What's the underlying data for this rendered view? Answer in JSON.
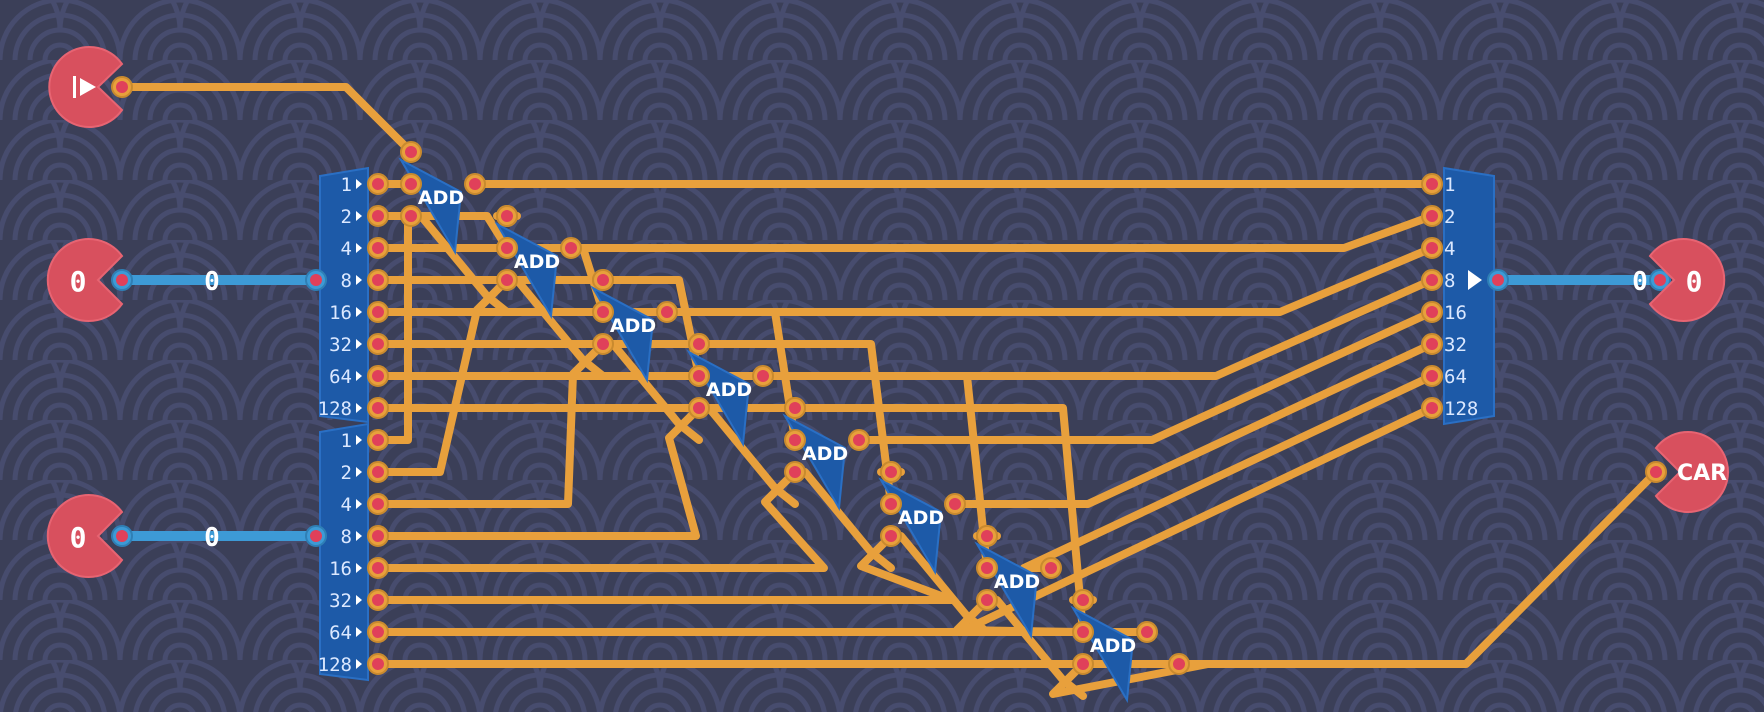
{
  "inputs": {
    "run": {
      "icon": "play-icon"
    },
    "a": {
      "label": "0",
      "wire_value": "0"
    },
    "b": {
      "label": "0",
      "wire_value": "0"
    }
  },
  "outputs": {
    "sum": {
      "label": "0",
      "wire_value": "0"
    },
    "carry": {
      "label": "CAR"
    }
  },
  "splitter_a": {
    "bits": [
      "1",
      "2",
      "4",
      "8",
      "16",
      "32",
      "64",
      "128"
    ]
  },
  "splitter_b": {
    "bits": [
      "1",
      "2",
      "4",
      "8",
      "16",
      "32",
      "64",
      "128"
    ]
  },
  "combiner": {
    "bits": [
      "1",
      "2",
      "4",
      "8",
      "16",
      "32",
      "64",
      "128"
    ]
  },
  "adders": [
    "ADD",
    "ADD",
    "ADD",
    "ADD",
    "ADD",
    "ADD",
    "ADD",
    "ADD"
  ],
  "colors": {
    "background": "#3b3f58",
    "pattern": "#44496a",
    "wire_bit": "#e8a03c",
    "wire_byte": "#3d9ad6",
    "component": "#1d5aa8",
    "io": "#d8505e",
    "pin": "#e0405a"
  }
}
